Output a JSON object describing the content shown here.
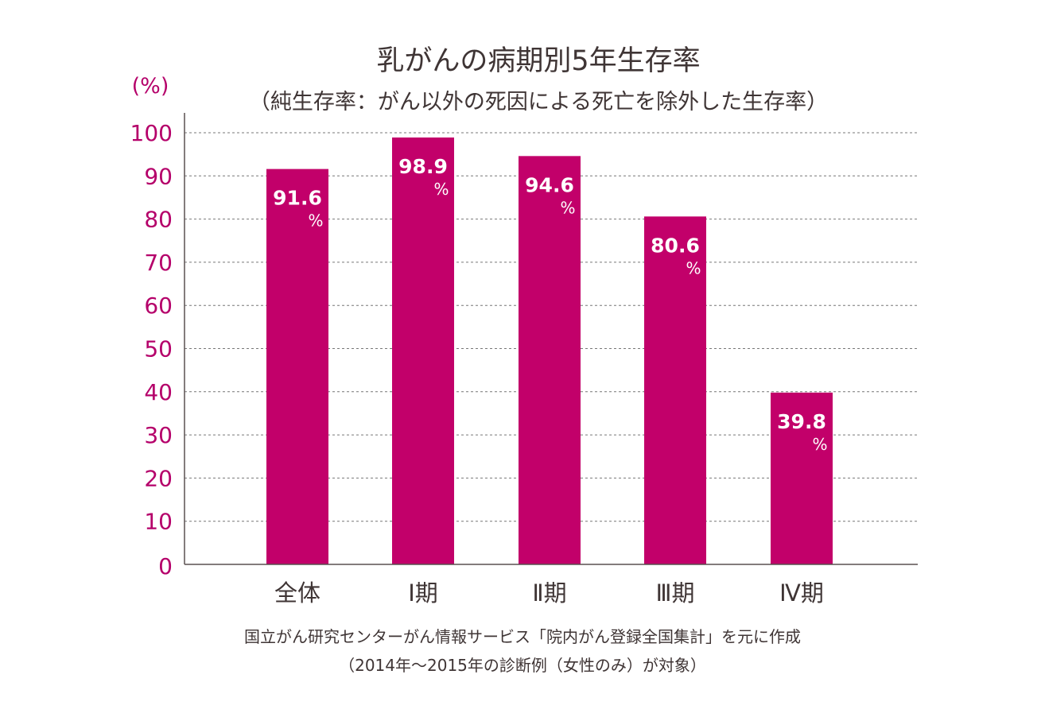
{
  "chart_data": {
    "type": "bar",
    "title": "乳がんの病期別5年生存率",
    "subtitle": "（純生存率：がん以外の死因による死亡を除外した生存率）",
    "ylabel": "(%)",
    "xlabel": "",
    "categories": [
      "全体",
      "Ⅰ期",
      "Ⅱ期",
      "Ⅲ期",
      "Ⅳ期"
    ],
    "values": [
      91.6,
      98.9,
      94.6,
      80.6,
      39.8
    ],
    "value_labels": [
      "91.6",
      "98.9",
      "94.6",
      "80.6",
      "39.8"
    ],
    "value_unit": "%",
    "ylim": [
      0,
      100
    ],
    "yticks": [
      0,
      10,
      20,
      30,
      40,
      50,
      60,
      70,
      80,
      90,
      100
    ],
    "grid": true,
    "bar_color": "#c2006a",
    "tick_color": "#b5006a",
    "text_color": "#3f3535"
  },
  "source": {
    "line1": "国立がん研究センターがん情報サービス「院内がん登録全国集計」を元に作成",
    "line2": "（2014年〜2015年の診断例（女性のみ）が対象）"
  }
}
